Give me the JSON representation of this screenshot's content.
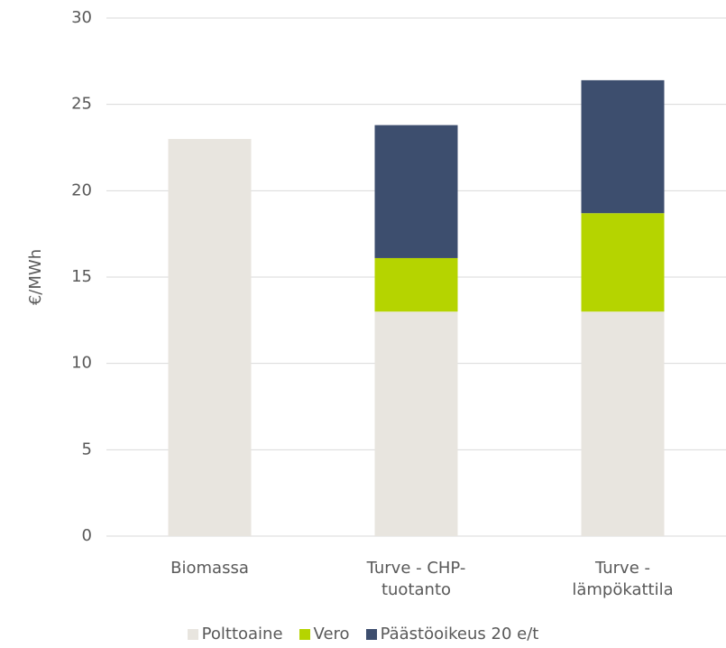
{
  "chart_data": {
    "type": "stacked_bar",
    "categories": [
      "Biomassa",
      "Turve - CHP-tuotanto",
      "Turve - lämpökattila"
    ],
    "series": [
      {
        "name": "Polttoaine",
        "color": "#e8e5df",
        "values": [
          23,
          13,
          13
        ]
      },
      {
        "name": "Vero",
        "color": "#b5d400",
        "values": [
          0,
          3.1,
          5.7
        ]
      },
      {
        "name": "Päästöoikeus 20 e/t",
        "color": "#3d4e6e",
        "values": [
          0,
          7.7,
          7.7
        ]
      }
    ],
    "y_label": "€/MWh",
    "ylim": [
      0,
      30
    ],
    "yticks": [
      0,
      5,
      10,
      15,
      20,
      25,
      30
    ],
    "grid": true,
    "legend": "bottom"
  }
}
